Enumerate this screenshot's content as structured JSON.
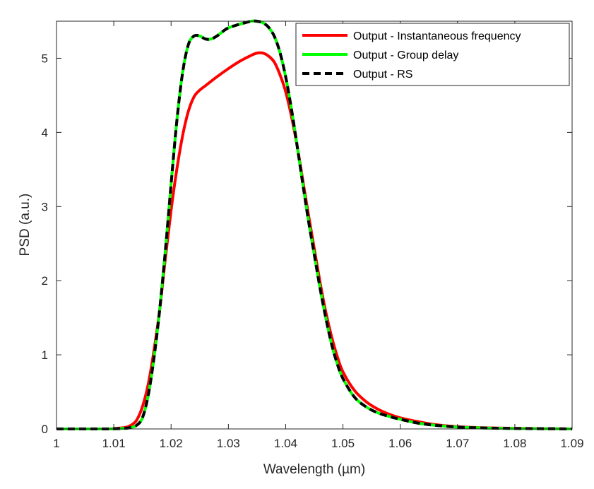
{
  "chart_data": {
    "type": "line",
    "xlabel": "Wavelength (µm)",
    "ylabel": "PSD (a.u.)",
    "xlim": [
      1.0,
      1.09
    ],
    "ylim": [
      0,
      5.5
    ],
    "xticks": [
      1.0,
      1.01,
      1.02,
      1.03,
      1.04,
      1.05,
      1.06,
      1.07,
      1.08,
      1.09
    ],
    "xtick_labels": [
      "1",
      "1.01",
      "1.02",
      "1.03",
      "1.04",
      "1.05",
      "1.06",
      "1.07",
      "1.08",
      "1.09"
    ],
    "yticks": [
      0,
      1,
      2,
      3,
      4,
      5
    ],
    "ytick_labels": [
      "0",
      "1",
      "2",
      "3",
      "4",
      "5"
    ],
    "grid": false,
    "box": true,
    "legend_position": "top-right",
    "series": [
      {
        "name": "Output - Instantaneous frequency",
        "color": "#ff0000",
        "style": "solid",
        "x": [
          1.0,
          1.008,
          1.01,
          1.012,
          1.013,
          1.014,
          1.015,
          1.016,
          1.017,
          1.018,
          1.019,
          1.02,
          1.021,
          1.022,
          1.023,
          1.024,
          1.025,
          1.026,
          1.028,
          1.03,
          1.032,
          1.034,
          1.035,
          1.036,
          1.037,
          1.038,
          1.039,
          1.04,
          1.041,
          1.042,
          1.043,
          1.044,
          1.045,
          1.046,
          1.047,
          1.048,
          1.049,
          1.05,
          1.052,
          1.054,
          1.056,
          1.058,
          1.06,
          1.063,
          1.066,
          1.07,
          1.075,
          1.08,
          1.085,
          1.09
        ],
        "y": [
          0.0,
          0.0,
          0.005,
          0.02,
          0.05,
          0.12,
          0.3,
          0.6,
          1.05,
          1.6,
          2.3,
          2.95,
          3.5,
          3.95,
          4.28,
          4.48,
          4.57,
          4.63,
          4.75,
          4.86,
          4.96,
          5.04,
          5.07,
          5.07,
          5.03,
          4.95,
          4.78,
          4.55,
          4.22,
          3.82,
          3.35,
          2.88,
          2.43,
          1.98,
          1.58,
          1.25,
          0.98,
          0.77,
          0.52,
          0.37,
          0.27,
          0.2,
          0.15,
          0.1,
          0.06,
          0.03,
          0.015,
          0.008,
          0.004,
          0.0
        ]
      },
      {
        "name": "Output - Group delay",
        "color": "#00ff00",
        "style": "solid",
        "x": [
          1.0,
          1.008,
          1.01,
          1.012,
          1.013,
          1.014,
          1.015,
          1.016,
          1.017,
          1.018,
          1.019,
          1.02,
          1.021,
          1.022,
          1.023,
          1.024,
          1.025,
          1.026,
          1.027,
          1.028,
          1.029,
          1.03,
          1.032,
          1.034,
          1.035,
          1.036,
          1.037,
          1.038,
          1.039,
          1.04,
          1.041,
          1.042,
          1.043,
          1.044,
          1.045,
          1.046,
          1.047,
          1.048,
          1.049,
          1.05,
          1.052,
          1.054,
          1.056,
          1.058,
          1.06,
          1.063,
          1.066,
          1.07,
          1.075,
          1.08,
          1.085,
          1.09
        ],
        "y": [
          0.0,
          0.0,
          0.002,
          0.008,
          0.02,
          0.05,
          0.15,
          0.45,
          0.95,
          1.6,
          2.4,
          3.3,
          4.15,
          4.8,
          5.18,
          5.3,
          5.3,
          5.26,
          5.26,
          5.3,
          5.36,
          5.41,
          5.46,
          5.5,
          5.5,
          5.48,
          5.42,
          5.3,
          5.08,
          4.75,
          4.32,
          3.82,
          3.3,
          2.8,
          2.35,
          1.9,
          1.5,
          1.15,
          0.88,
          0.68,
          0.43,
          0.3,
          0.22,
          0.17,
          0.13,
          0.08,
          0.05,
          0.025,
          0.012,
          0.006,
          0.003,
          0.0
        ]
      },
      {
        "name": "Output - RS",
        "color": "#000000",
        "style": "dashed",
        "x": [
          1.0,
          1.008,
          1.01,
          1.012,
          1.013,
          1.014,
          1.015,
          1.016,
          1.017,
          1.018,
          1.019,
          1.02,
          1.021,
          1.022,
          1.023,
          1.024,
          1.025,
          1.026,
          1.027,
          1.028,
          1.029,
          1.03,
          1.032,
          1.034,
          1.035,
          1.036,
          1.037,
          1.038,
          1.039,
          1.04,
          1.041,
          1.042,
          1.043,
          1.044,
          1.045,
          1.046,
          1.047,
          1.048,
          1.049,
          1.05,
          1.052,
          1.054,
          1.056,
          1.058,
          1.06,
          1.063,
          1.066,
          1.07,
          1.075,
          1.08,
          1.085,
          1.09
        ],
        "y": [
          0.0,
          0.0,
          0.002,
          0.008,
          0.02,
          0.05,
          0.15,
          0.45,
          0.95,
          1.6,
          2.4,
          3.3,
          4.15,
          4.8,
          5.18,
          5.3,
          5.3,
          5.26,
          5.26,
          5.3,
          5.36,
          5.41,
          5.46,
          5.5,
          5.5,
          5.48,
          5.42,
          5.3,
          5.08,
          4.75,
          4.32,
          3.82,
          3.3,
          2.8,
          2.35,
          1.9,
          1.5,
          1.15,
          0.88,
          0.68,
          0.43,
          0.3,
          0.22,
          0.17,
          0.13,
          0.08,
          0.05,
          0.025,
          0.012,
          0.006,
          0.003,
          0.0
        ]
      }
    ]
  }
}
